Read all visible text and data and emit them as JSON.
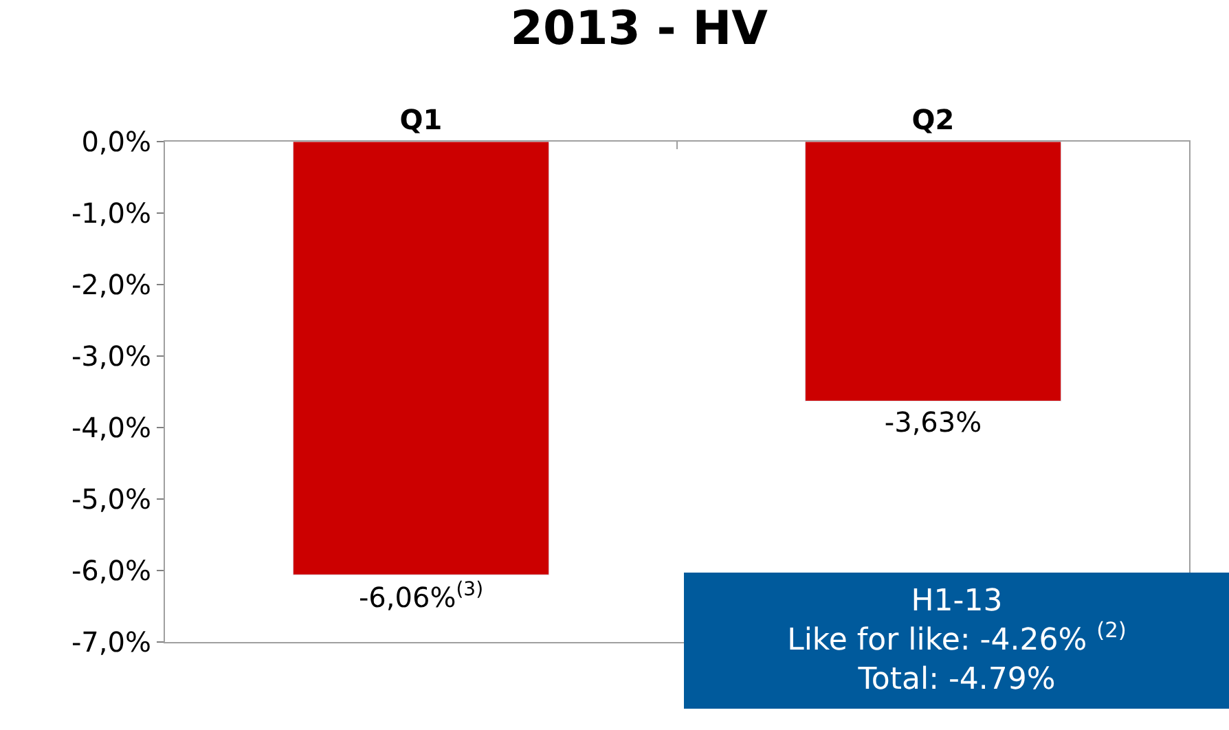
{
  "chart_data": {
    "type": "bar",
    "title": "2013 - HV",
    "categories": [
      "Q1",
      "Q2"
    ],
    "values": [
      -6.06,
      -3.63
    ],
    "color": "#cc0000",
    "value_labels": [
      "-6,06%$^{(3)}$",
      "-3,63%"
    ],
    "ylim": [
      -7,
      0
    ],
    "yticks": [
      {
        "value": 0,
        "label": "0,0%"
      },
      {
        "value": -1,
        "label": "-1,0%"
      },
      {
        "value": -2,
        "label": "-2,0%"
      },
      {
        "value": -3,
        "label": "-3,0%"
      },
      {
        "value": -4,
        "label": "-4,0%"
      },
      {
        "value": -5,
        "label": "-5,0%"
      },
      {
        "value": -6,
        "label": "-6,0%"
      },
      {
        "value": -7,
        "label": "-7,0%"
      }
    ],
    "annotations": [
      "H1-13\nLike for like: -4.26% $^{(2)}$\nTotal: -4.79%"
    ]
  }
}
